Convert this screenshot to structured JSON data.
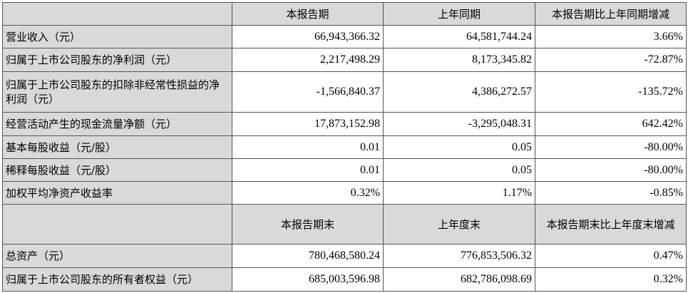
{
  "header1": [
    "",
    "本报告期",
    "上年同期",
    "本报告期比上年同期增减"
  ],
  "rows1": [
    [
      "营业收入（元）",
      "66,943,366.32",
      "64,581,744.24",
      "3.66%"
    ],
    [
      "归属于上市公司股东的净利润（元）",
      "2,217,498.29",
      "8,173,345.82",
      "-72.87%"
    ],
    [
      "归属于上市公司股东的扣除非经常性损益的净利润（元）",
      "-1,566,840.37",
      "4,386,272.57",
      "-135.72%"
    ],
    [
      "经营活动产生的现金流量净额（元）",
      "17,873,152.98",
      "-3,295,048.31",
      "642.42%"
    ],
    [
      "基本每股收益（元/股）",
      "0.01",
      "0.05",
      "-80.00%"
    ],
    [
      "稀释每股收益（元/股）",
      "0.01",
      "0.05",
      "-80.00%"
    ],
    [
      "加权平均净资产收益率",
      "0.32%",
      "1.17%",
      "-0.85%"
    ]
  ],
  "header2": [
    "",
    "本报告期末",
    "上年度末",
    "本报告期末比上年度末增减"
  ],
  "rows2": [
    [
      "总资产（元）",
      "780,468,580.24",
      "776,853,506.32",
      "0.47%"
    ],
    [
      "归属于上市公司股东的所有者权益（元）",
      "685,003,596.98",
      "682,786,098.69",
      "0.32%"
    ]
  ]
}
